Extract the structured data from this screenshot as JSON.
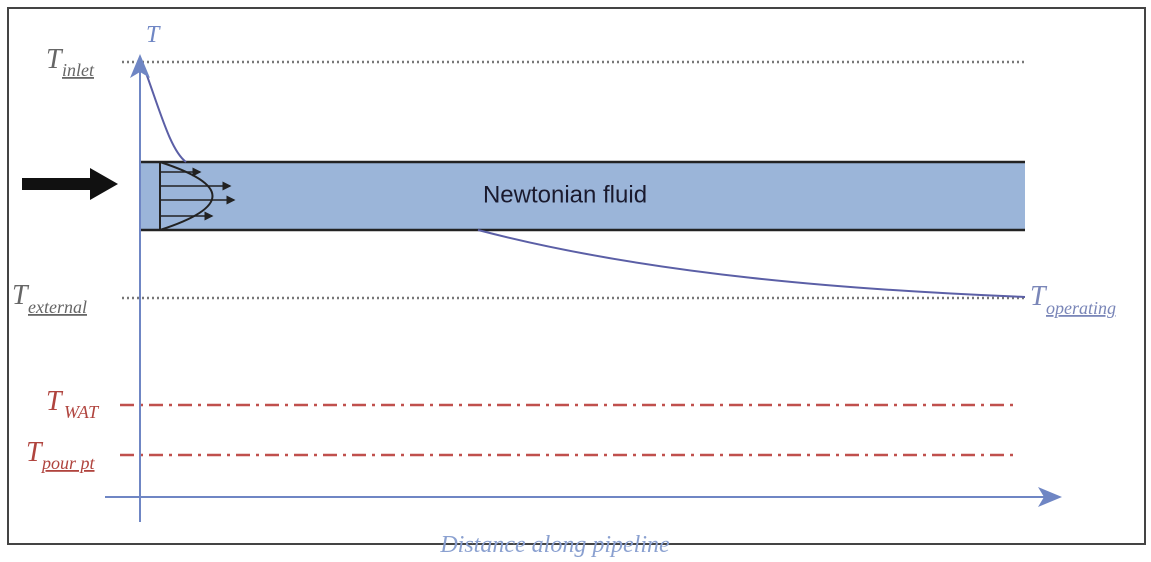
{
  "diagram": {
    "axis_label_y": "T",
    "axis_label_x": "Distance along pipeline",
    "pipe_label": "Newtonian fluid",
    "levels": [
      {
        "symbol": "T",
        "subscript": "inlet"
      },
      {
        "symbol": "T",
        "subscript": "external"
      },
      {
        "symbol": "T",
        "subscript": "WAT"
      },
      {
        "symbol": "T",
        "subscript": "pour pt"
      }
    ],
    "end_label": {
      "symbol": "T",
      "subscript": "operating"
    }
  }
}
